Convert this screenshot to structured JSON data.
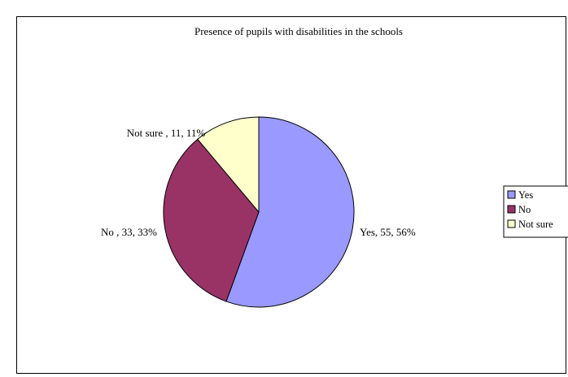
{
  "chart_data": {
    "type": "pie",
    "title": "Presence of pupils with disabilities in the schools",
    "slices": [
      {
        "name": "Yes",
        "value": 55,
        "percent": 56,
        "label": "Yes, 55, 56%",
        "color": "#9999ff"
      },
      {
        "name": "No",
        "value": 33,
        "percent": 33,
        "label": "No , 33, 33%",
        "color": "#993366"
      },
      {
        "name": "Not sure",
        "value": 11,
        "percent": 11,
        "label": "Not sure , 11, 11%",
        "color": "#ffffcc"
      }
    ],
    "legend": {
      "placement": "right",
      "entries": [
        "Yes",
        "No",
        "Not sure"
      ]
    }
  }
}
